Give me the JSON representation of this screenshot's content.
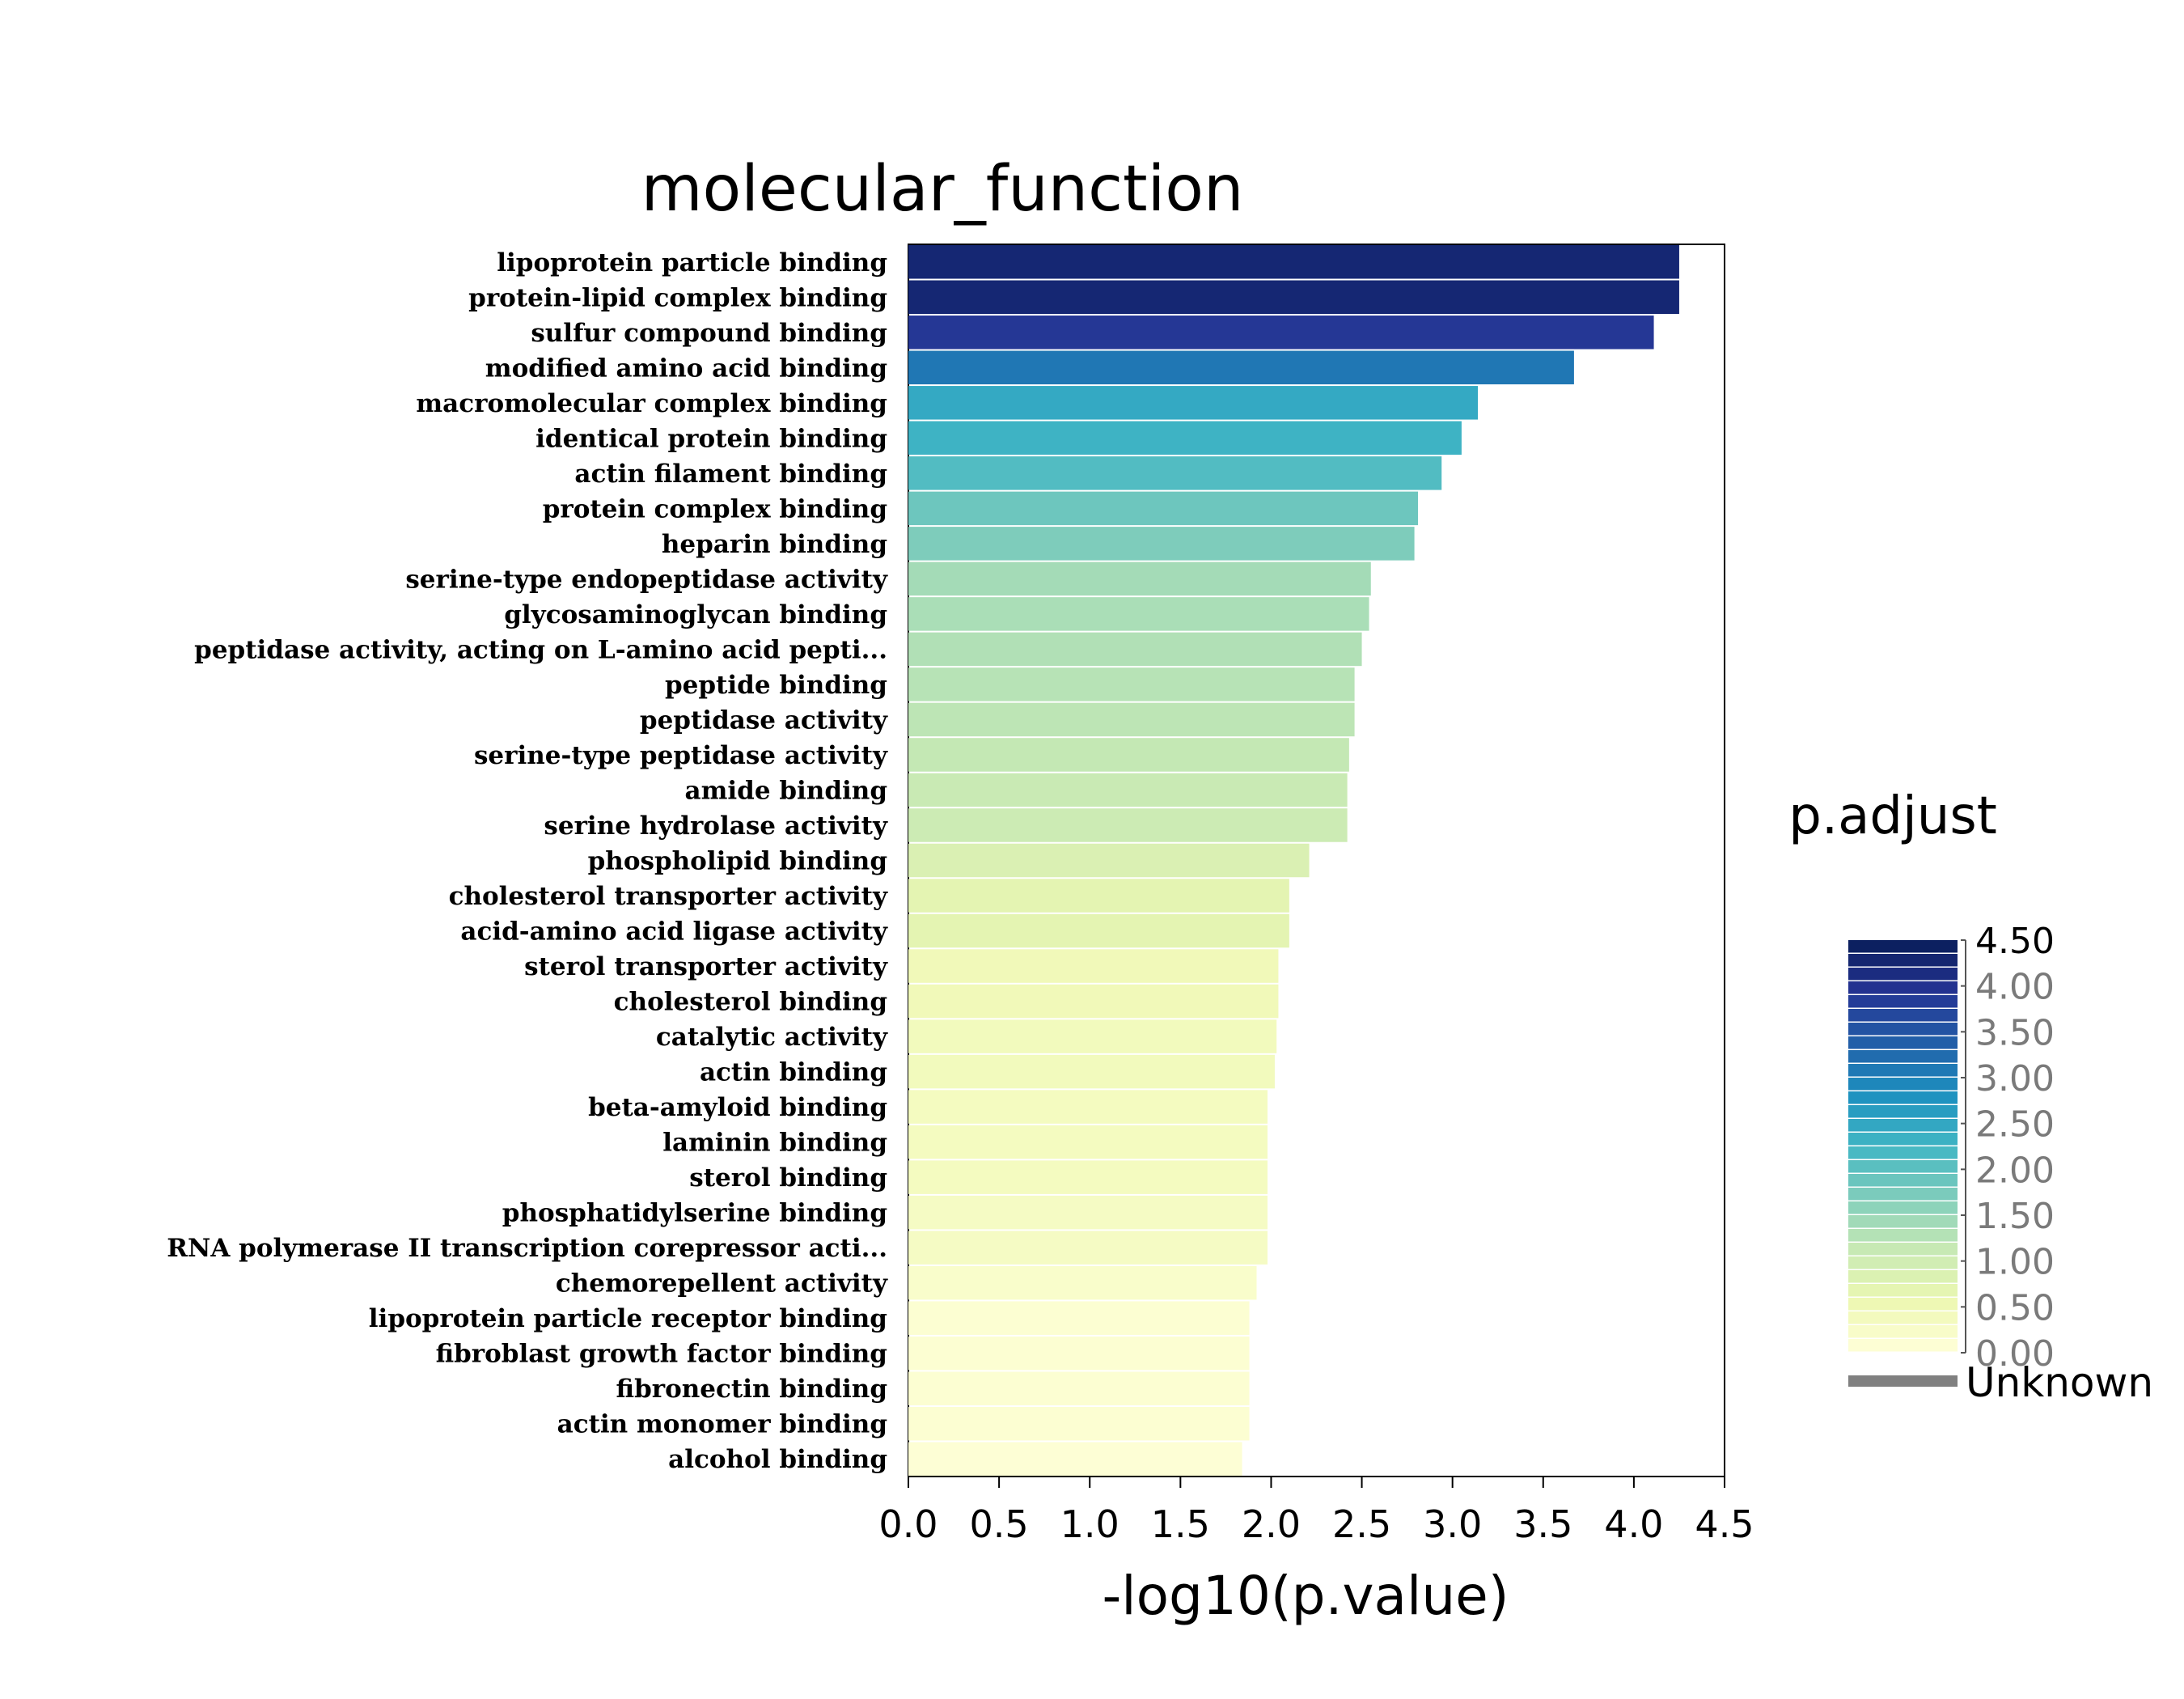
{
  "chart_data": {
    "type": "bar",
    "orientation": "horizontal",
    "title": "molecular_function",
    "xlabel": "-log10(p.value)",
    "ylabel": "",
    "xlim": [
      0,
      4.5
    ],
    "xticks": [
      "0.0",
      "0.5",
      "1.0",
      "1.5",
      "2.0",
      "2.5",
      "3.0",
      "3.5",
      "4.0",
      "4.5"
    ],
    "grid": false,
    "categories": [
      "lipoprotein particle binding",
      "protein-lipid complex binding",
      "sulfur compound binding",
      "modified amino acid binding",
      "macromolecular complex binding",
      "identical protein binding",
      "actin filament binding",
      "protein complex binding",
      "heparin binding",
      "serine-type endopeptidase activity",
      "glycosaminoglycan binding",
      "peptidase activity, acting on L-amino acid pepti...",
      "peptide binding",
      "peptidase activity",
      "serine-type peptidase activity",
      "amide binding",
      "serine hydrolase activity",
      "phospholipid binding",
      "cholesterol transporter activity",
      "acid-amino acid ligase activity",
      "sterol transporter activity",
      "cholesterol binding",
      "catalytic activity",
      "actin binding",
      "beta-amyloid binding",
      "laminin binding",
      "sterol binding",
      "phosphatidylserine binding",
      "RNA polymerase II transcription corepressor acti...",
      "chemorepellent activity",
      "lipoprotein particle receptor binding",
      "fibroblast growth factor binding",
      "fibronectin binding",
      "actin monomer binding",
      "alcohol binding"
    ],
    "values": [
      4.25,
      4.25,
      4.11,
      3.67,
      3.14,
      3.05,
      2.94,
      2.81,
      2.79,
      2.55,
      2.54,
      2.5,
      2.46,
      2.46,
      2.43,
      2.42,
      2.42,
      2.21,
      2.1,
      2.1,
      2.04,
      2.04,
      2.03,
      2.02,
      1.98,
      1.98,
      1.98,
      1.98,
      1.98,
      1.92,
      1.88,
      1.88,
      1.88,
      1.88,
      1.84
    ],
    "color_values": [
      4.25,
      4.25,
      3.9,
      3.1,
      2.45,
      2.3,
      2.1,
      1.85,
      1.7,
      1.4,
      1.35,
      1.3,
      1.25,
      1.2,
      1.15,
      1.1,
      1.05,
      0.85,
      0.7,
      0.7,
      0.45,
      0.45,
      0.4,
      0.4,
      0.35,
      0.35,
      0.35,
      0.3,
      0.3,
      0.2,
      0.1,
      0.1,
      0.1,
      0.1,
      0.05
    ],
    "legend": {
      "title": "p.adjust",
      "position": "right",
      "ticks": [
        "4.50",
        "4.00",
        "3.50",
        "3.00",
        "2.50",
        "2.00",
        "1.50",
        "1.00",
        "0.50",
        "0.00"
      ],
      "range": [
        0,
        4.5
      ],
      "unknown_label": "Unknown",
      "unknown_color": "#808080"
    },
    "colorscale": [
      "#ffffd9",
      "#edf8b1",
      "#c7e9b4",
      "#7fcdbb",
      "#41b6c4",
      "#1d91c0",
      "#225ea8",
      "#253494",
      "#081d58"
    ]
  }
}
